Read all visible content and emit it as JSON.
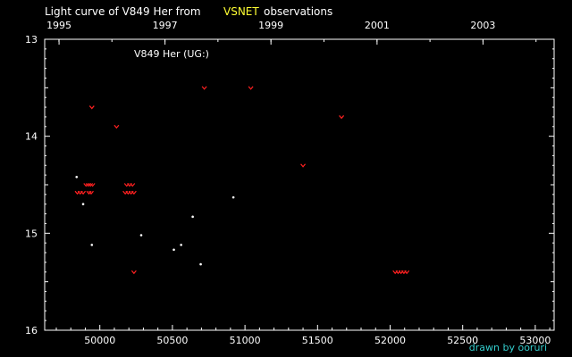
{
  "header": {
    "title_prefix": "Light curve of V849 Her from",
    "title_source": "VSNET",
    "title_suffix": "observations"
  },
  "footer": {
    "credit": "drawn by ooruri"
  },
  "colors": {
    "background": "#000000",
    "frame": "#ffffff",
    "source_text": "#ffff33",
    "negative_marks": "#ff2020",
    "positive_marks": "#ffffff",
    "credit_text": "#33cccc"
  },
  "chart_data": {
    "type": "scatter",
    "title": "V849 Her (UG:)",
    "xlabel": "",
    "ylabel": "",
    "xlim": [
      49620,
      53130
    ],
    "ylim": [
      16,
      13
    ],
    "y_inverted": true,
    "grid": false,
    "x_ticks": [
      50000,
      50500,
      51000,
      51500,
      52000,
      52500,
      53000
    ],
    "x_tick_labels": [
      "50000",
      "50500",
      "51000",
      "51500",
      "52000",
      "52500",
      "53000"
    ],
    "top_axis": {
      "ticks": [
        49719,
        50449,
        51179,
        51910,
        52640
      ],
      "labels": [
        "1995",
        "1997",
        "1999",
        "2001",
        "2003"
      ]
    },
    "y_ticks": [
      13,
      14,
      15,
      16
    ],
    "y_tick_labels": [
      "13",
      "14",
      "15",
      "16"
    ],
    "series": [
      {
        "marker": "negative observation (fainter than)",
        "points": [
          [
            49845,
            14.58
          ],
          [
            49865,
            14.58
          ],
          [
            49885,
            14.58
          ],
          [
            49905,
            14.5
          ],
          [
            49920,
            14.5
          ],
          [
            49935,
            14.5
          ],
          [
            49950,
            14.5
          ],
          [
            49925,
            14.58
          ],
          [
            49940,
            14.58
          ],
          [
            49945,
            13.7
          ],
          [
            50115,
            13.9
          ],
          [
            50185,
            14.5
          ],
          [
            50205,
            14.5
          ],
          [
            50225,
            14.5
          ],
          [
            50175,
            14.58
          ],
          [
            50195,
            14.58
          ],
          [
            50215,
            14.58
          ],
          [
            50235,
            14.58
          ],
          [
            50235,
            15.4
          ],
          [
            50720,
            13.5
          ],
          [
            51040,
            13.5
          ],
          [
            51400,
            14.3
          ],
          [
            51665,
            13.8
          ],
          [
            52035,
            15.4
          ],
          [
            52055,
            15.4
          ],
          [
            52075,
            15.4
          ],
          [
            52095,
            15.4
          ],
          [
            52115,
            15.4
          ]
        ]
      },
      {
        "marker": "positive observation",
        "points": [
          [
            49840,
            14.42
          ],
          [
            49885,
            14.7
          ],
          [
            49945,
            15.12
          ],
          [
            50285,
            15.02
          ],
          [
            50510,
            15.17
          ],
          [
            50560,
            15.12
          ],
          [
            50640,
            14.83
          ],
          [
            50695,
            15.32
          ],
          [
            50920,
            14.63
          ]
        ]
      }
    ]
  }
}
